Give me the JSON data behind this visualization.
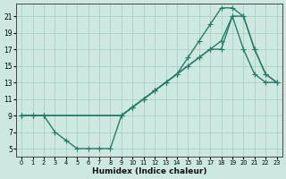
{
  "xlabel": "Humidex (Indice chaleur)",
  "bg_color": "#cce8e0",
  "grid_color": "#aacec6",
  "line_color": "#2a7a6a",
  "xlim": [
    -0.5,
    23.5
  ],
  "ylim": [
    4,
    22.5
  ],
  "xticks": [
    0,
    1,
    2,
    3,
    4,
    5,
    6,
    7,
    8,
    9,
    10,
    11,
    12,
    13,
    14,
    15,
    16,
    17,
    18,
    19,
    20,
    21,
    22,
    23
  ],
  "yticks": [
    5,
    7,
    9,
    11,
    13,
    15,
    17,
    19,
    21
  ],
  "line1_x": [
    0,
    1,
    2,
    3,
    4,
    5,
    6,
    7,
    8,
    9,
    10,
    11,
    12,
    13,
    14,
    15,
    16,
    17,
    18,
    19,
    20,
    21,
    22,
    23
  ],
  "line1_y": [
    9,
    9,
    9,
    7,
    6,
    5,
    5,
    5,
    5,
    9,
    10,
    11,
    12,
    13,
    14,
    15,
    16,
    17,
    17,
    21,
    17,
    14,
    13,
    13
  ],
  "line2_x": [
    0,
    1,
    2,
    9,
    10,
    11,
    12,
    13,
    14,
    15,
    16,
    17,
    18,
    19,
    20,
    21,
    22,
    23
  ],
  "line2_y": [
    9,
    9,
    9,
    9,
    10,
    11,
    12,
    13,
    14,
    15,
    16,
    17,
    18,
    21,
    21,
    17,
    14,
    13
  ],
  "line3_x": [
    0,
    1,
    2,
    9,
    10,
    11,
    12,
    13,
    14,
    15,
    16,
    17,
    18,
    19,
    20,
    21,
    22,
    23
  ],
  "line3_y": [
    9,
    9,
    9,
    9,
    10,
    11,
    12,
    13,
    14,
    16,
    18,
    20,
    22,
    22,
    21,
    17,
    14,
    13
  ],
  "markersize": 2.5,
  "linewidth": 1.0
}
